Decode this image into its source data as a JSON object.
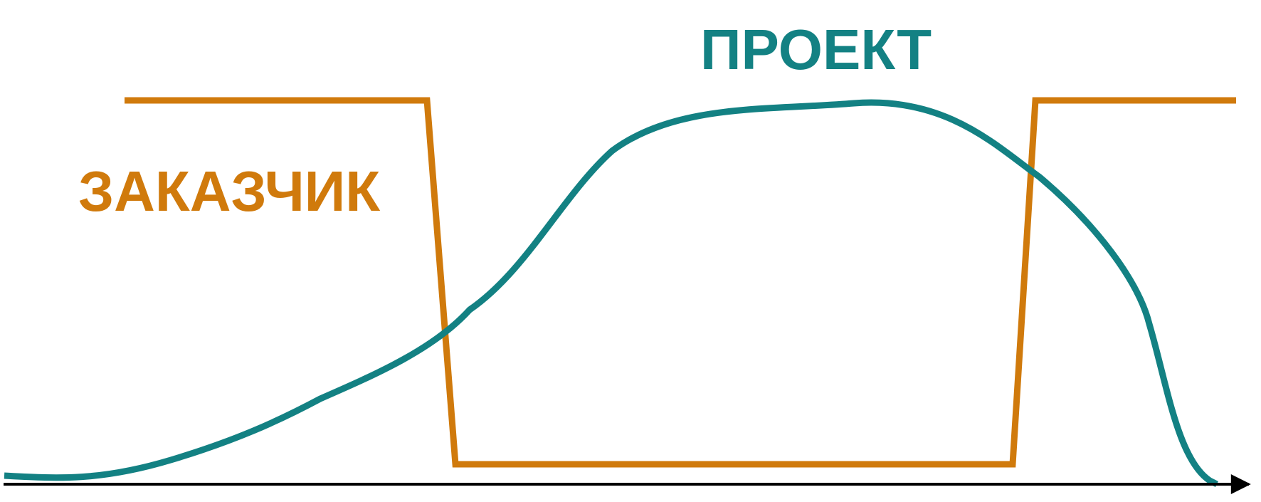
{
  "labels": {
    "project": "ПРОЕКТ",
    "customer": "ЗАКАЗЧИК"
  },
  "colors": {
    "project": "#138183",
    "customer": "#d07a0c",
    "axis": "#000000",
    "background": "#ffffff"
  }
}
